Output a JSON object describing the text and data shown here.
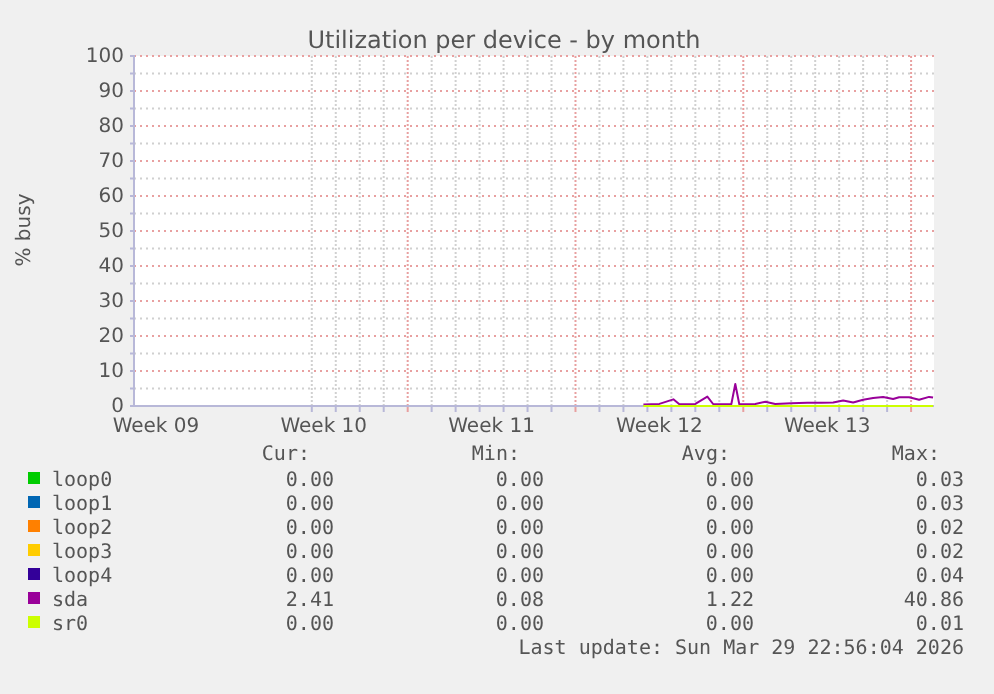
{
  "chart_data": {
    "type": "line",
    "title": "Utilization per device - by month",
    "ylabel": "% busy",
    "xlim": [
      "2026-02-24T14:00",
      "2026-03-29T22:56"
    ],
    "xticks": [
      {
        "value": "2026-02-25T12:00",
        "label": "Week 09"
      },
      {
        "value": "2026-03-04",
        "label": null
      },
      {
        "value": "2026-03-04T12:00",
        "label": "Week 10"
      },
      {
        "value": "2026-03-05",
        "label": null
      },
      {
        "value": "2026-03-06",
        "label": null
      },
      {
        "value": "2026-03-07",
        "label": null
      },
      {
        "value": "2026-03-08",
        "label": null
      },
      {
        "value": "2026-03-09",
        "label": null
      },
      {
        "value": "2026-03-10",
        "label": null
      },
      {
        "value": "2026-03-11",
        "label": null
      },
      {
        "value": "2026-03-11T12:00",
        "label": "Week 11"
      },
      {
        "value": "2026-03-12",
        "label": null
      },
      {
        "value": "2026-03-13",
        "label": null
      },
      {
        "value": "2026-03-14",
        "label": null
      },
      {
        "value": "2026-03-15",
        "label": null
      },
      {
        "value": "2026-03-16",
        "label": null
      },
      {
        "value": "2026-03-17",
        "label": null
      },
      {
        "value": "2026-03-18",
        "label": null
      },
      {
        "value": "2026-03-18T12:00",
        "label": "Week 12"
      },
      {
        "value": "2026-03-19",
        "label": null
      },
      {
        "value": "2026-03-20",
        "label": null
      },
      {
        "value": "2026-03-21",
        "label": null
      },
      {
        "value": "2026-03-22",
        "label": null
      },
      {
        "value": "2026-03-23",
        "label": null
      },
      {
        "value": "2026-03-24",
        "label": null
      },
      {
        "value": "2026-03-25",
        "label": null
      },
      {
        "value": "2026-03-25T12:00",
        "label": "Week 13"
      },
      {
        "value": "2026-03-26",
        "label": null
      },
      {
        "value": "2026-03-27",
        "label": null
      },
      {
        "value": "2026-03-28",
        "label": null
      },
      {
        "value": "2026-03-29",
        "label": null
      }
    ],
    "ylim": [
      0,
      100
    ],
    "yticks": [
      0,
      {
        "value": 5,
        "label": null
      },
      10,
      {
        "value": 15,
        "label": null
      },
      20,
      {
        "value": 25,
        "label": null
      },
      30,
      {
        "value": 35,
        "label": null
      },
      40,
      {
        "value": 45,
        "label": null
      },
      50,
      {
        "value": 55,
        "label": null
      },
      60,
      {
        "value": 65,
        "label": null
      },
      70,
      {
        "value": 75,
        "label": null
      },
      80,
      {
        "value": 85,
        "label": null
      },
      90,
      {
        "value": 95,
        "label": null
      },
      100
    ],
    "grid": true,
    "legend": "bottom",
    "series": [
      {
        "name": "loop0",
        "color": "#00cc00"
      },
      {
        "name": "loop1",
        "color": "#0066b3"
      },
      {
        "name": "loop2",
        "color": "#ff8000"
      },
      {
        "name": "loop3",
        "color": "#ffcc00"
      },
      {
        "name": "loop4",
        "color": "#330099"
      },
      {
        "name": "sda",
        "color": "#990099",
        "x": [
          "2026-03-17T20:00",
          "2026-03-18T12:00",
          "2026-03-19T02:00",
          "2026-03-19T08:00",
          "2026-03-20T00:00",
          "2026-03-20T12:00",
          "2026-03-20T18:00",
          "2026-03-21T12:00",
          "2026-03-21T16:00",
          "2026-03-21T20:00",
          "2026-03-22T12:00",
          "2026-03-22T22:00",
          "2026-03-23T08:00",
          "2026-03-24T00:00",
          "2026-03-24T16:00",
          "2026-03-25T06:00",
          "2026-03-25T18:00",
          "2026-03-26T04:00",
          "2026-03-26T14:00",
          "2026-03-27T00:00",
          "2026-03-27T10:00",
          "2026-03-27T20:00",
          "2026-03-28T06:00",
          "2026-03-28T12:00",
          "2026-03-28T22:00",
          "2026-03-29T08:00",
          "2026-03-29T18:00",
          "2026-03-29T22:00"
        ],
        "values": [
          0.4,
          0.6,
          1.9,
          0.5,
          0.6,
          2.7,
          0.5,
          0.5,
          6.3,
          0.5,
          0.6,
          1.2,
          0.6,
          0.8,
          0.9,
          0.9,
          1.0,
          1.6,
          1.0,
          1.8,
          2.3,
          2.6,
          2.0,
          2.5,
          2.5,
          1.8,
          2.6,
          2.4
        ]
      },
      {
        "name": "sr0",
        "color": "#ccff00",
        "x": [
          "2026-03-17T20:00",
          "2026-03-29T22:00"
        ],
        "values": [
          0,
          0
        ]
      }
    ],
    "annotations": [
      "Cur:",
      "Min:",
      "Avg:",
      "Max:",
      "0.00",
      "0.00",
      "0.00",
      "0.03",
      "0.00",
      "0.00",
      "0.00",
      "0.03",
      "0.00",
      "0.00",
      "0.00",
      "0.02",
      "0.00",
      "0.00",
      "0.00",
      "0.02",
      "0.00",
      "0.00",
      "0.00",
      "0.04",
      "2.41",
      "0.08",
      "1.22",
      "40.86",
      "0.00",
      "0.00",
      "0.00",
      "0.01",
      "Last update: Sun Mar 29 22:56:04 2026"
    ]
  }
}
